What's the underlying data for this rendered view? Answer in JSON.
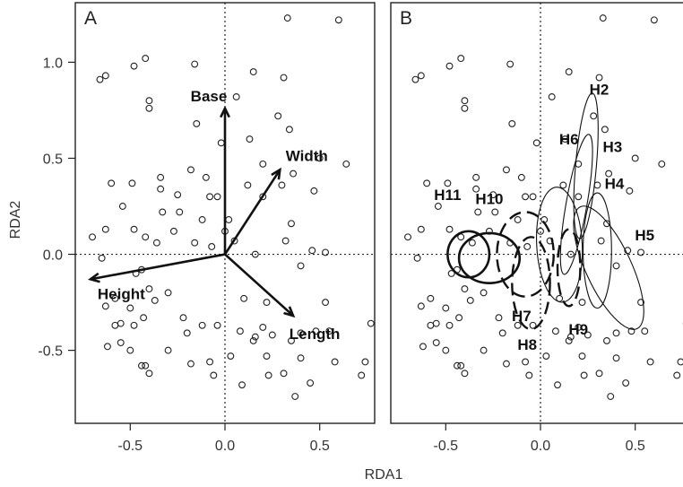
{
  "chart_data": [
    {
      "type": "scatter",
      "panel_label": "A",
      "xlabel": "RDA1",
      "ylabel": "RDA2",
      "xlim": [
        -0.79,
        0.79
      ],
      "ylim": [
        -0.88,
        1.31
      ],
      "xticks": [
        -0.5,
        0.0,
        0.5
      ],
      "xtick_labels": [
        "-0.5",
        "0.0",
        "0.5"
      ],
      "yticks": [
        -0.5,
        0.0,
        0.5,
        1.0
      ],
      "ytick_labels": [
        "-0.5",
        "0.0",
        "0.5",
        "1.0"
      ],
      "reference_lines": {
        "x": 0,
        "y": 0,
        "style": "dotted"
      },
      "marker": "open-circle",
      "points": [
        [
          0.33,
          1.23
        ],
        [
          0.6,
          1.22
        ],
        [
          -0.42,
          1.02
        ],
        [
          -0.48,
          0.98
        ],
        [
          -0.16,
          0.99
        ],
        [
          -0.63,
          0.93
        ],
        [
          -0.66,
          0.91
        ],
        [
          0.15,
          0.95
        ],
        [
          0.31,
          0.92
        ],
        [
          -0.4,
          0.8
        ],
        [
          0.06,
          0.82
        ],
        [
          -0.4,
          0.76
        ],
        [
          -0.15,
          0.68
        ],
        [
          0.28,
          0.72
        ],
        [
          0.34,
          0.65
        ],
        [
          0.13,
          0.6
        ],
        [
          -0.02,
          0.58
        ],
        [
          0.64,
          0.47
        ],
        [
          0.5,
          0.5
        ],
        [
          0.2,
          0.47
        ],
        [
          -0.18,
          0.44
        ],
        [
          0.36,
          0.42
        ],
        [
          -0.34,
          0.4
        ],
        [
          -0.1,
          0.4
        ],
        [
          -0.6,
          0.37
        ],
        [
          -0.49,
          0.37
        ],
        [
          0.12,
          0.36
        ],
        [
          0.3,
          0.36
        ],
        [
          -0.34,
          0.34
        ],
        [
          0.47,
          0.33
        ],
        [
          -0.08,
          0.3
        ],
        [
          -0.04,
          0.3
        ],
        [
          0.2,
          0.3
        ],
        [
          -0.54,
          0.25
        ],
        [
          -0.33,
          0.22
        ],
        [
          -0.24,
          0.22
        ],
        [
          0.02,
          0.18
        ],
        [
          0.35,
          0.16
        ],
        [
          -0.12,
          0.18
        ],
        [
          -0.63,
          0.13
        ],
        [
          -0.48,
          0.13
        ],
        [
          -0.27,
          0.12
        ],
        [
          0.0,
          0.12
        ],
        [
          0.05,
          0.07
        ],
        [
          -0.42,
          0.09
        ],
        [
          -0.36,
          0.06
        ],
        [
          0.32,
          0.07
        ],
        [
          0.46,
          0.02
        ],
        [
          0.53,
          0.01
        ],
        [
          -0.16,
          0.06
        ],
        [
          0.16,
          0.0
        ],
        [
          -0.07,
          0.04
        ],
        [
          -0.7,
          0.09
        ],
        [
          -0.65,
          -0.02
        ],
        [
          0.4,
          -0.06
        ],
        [
          -0.44,
          -0.08
        ],
        [
          -0.47,
          -0.1
        ],
        [
          -0.4,
          -0.18
        ],
        [
          -0.3,
          -0.2
        ],
        [
          -0.58,
          -0.23
        ],
        [
          -0.63,
          -0.27
        ],
        [
          -0.5,
          -0.28
        ],
        [
          -0.37,
          -0.24
        ],
        [
          0.1,
          -0.23
        ],
        [
          0.22,
          -0.25
        ],
        [
          0.53,
          -0.25
        ],
        [
          -0.58,
          -0.37
        ],
        [
          -0.55,
          -0.36
        ],
        [
          -0.48,
          -0.37
        ],
        [
          -0.43,
          -0.33
        ],
        [
          -0.22,
          -0.33
        ],
        [
          -0.12,
          -0.37
        ],
        [
          -0.04,
          -0.37
        ],
        [
          -0.2,
          -0.41
        ],
        [
          -0.55,
          -0.46
        ],
        [
          -0.5,
          -0.5
        ],
        [
          -0.62,
          -0.48
        ],
        [
          -0.3,
          -0.5
        ],
        [
          0.08,
          -0.4
        ],
        [
          0.16,
          -0.43
        ],
        [
          0.2,
          -0.38
        ],
        [
          0.25,
          -0.42
        ],
        [
          0.35,
          -0.45
        ],
        [
          0.4,
          -0.41
        ],
        [
          0.48,
          -0.4
        ],
        [
          0.22,
          -0.53
        ],
        [
          0.03,
          -0.53
        ],
        [
          -0.08,
          -0.56
        ],
        [
          0.4,
          -0.54
        ],
        [
          0.58,
          -0.56
        ],
        [
          0.74,
          -0.56
        ],
        [
          -0.44,
          -0.58
        ],
        [
          -0.42,
          -0.58
        ],
        [
          -0.4,
          -0.62
        ],
        [
          -0.18,
          -0.57
        ],
        [
          -0.06,
          -0.63
        ],
        [
          0.23,
          -0.63
        ],
        [
          0.31,
          -0.62
        ],
        [
          0.45,
          -0.67
        ],
        [
          0.72,
          -0.63
        ],
        [
          0.09,
          -0.68
        ],
        [
          0.37,
          -0.74
        ],
        [
          0.15,
          -0.45
        ],
        [
          -0.25,
          0.31
        ],
        [
          0.55,
          -0.4
        ],
        [
          0.77,
          -0.36
        ]
      ],
      "vectors": [
        {
          "name": "Base",
          "x": 0.0,
          "y": 0.76
        },
        {
          "name": "Width",
          "x": 0.29,
          "y": 0.44
        },
        {
          "name": "Height",
          "x": -0.71,
          "y": -0.13
        },
        {
          "name": "Length",
          "x": 0.36,
          "y": -0.32
        }
      ],
      "grid": false
    },
    {
      "type": "scatter",
      "panel_label": "B",
      "xlim": [
        -0.79,
        0.79
      ],
      "ylim": [
        -0.88,
        1.31
      ],
      "xticks": [
        -0.5,
        0.0,
        0.5
      ],
      "xtick_labels": [
        "-0.5",
        "0.0",
        "0.5"
      ],
      "reference_lines": {
        "x": 0,
        "y": 0,
        "style": "dotted"
      },
      "marker": "open-circle",
      "ellipses": [
        {
          "name": "H2",
          "cx": 0.24,
          "cy": 0.46,
          "rx": 0.055,
          "ry": 0.38,
          "rot": 5,
          "style": "thin"
        },
        {
          "name": "H3",
          "cx": 0.19,
          "cy": 0.26,
          "rx": 0.055,
          "ry": 0.37,
          "rot": 10,
          "style": "thin"
        },
        {
          "name": "H6",
          "cx": 0.1,
          "cy": 0.05,
          "rx": 0.12,
          "ry": 0.3,
          "rot": -3,
          "style": "thin"
        },
        {
          "name": "H4",
          "cx": 0.3,
          "cy": 0.02,
          "rx": 0.075,
          "ry": 0.3,
          "rot": 0,
          "style": "thin"
        },
        {
          "name": "H5",
          "cx": 0.36,
          "cy": -0.07,
          "rx": 0.12,
          "ry": 0.35,
          "rot": -25,
          "style": "thin"
        },
        {
          "name": "H11",
          "cx": -0.38,
          "cy": 0.0,
          "rx": 0.11,
          "ry": 0.12,
          "rot": 0,
          "style": "thick"
        },
        {
          "name": "H10",
          "cx": -0.27,
          "cy": -0.02,
          "rx": 0.16,
          "ry": 0.13,
          "rot": 0,
          "style": "thick"
        },
        {
          "name": "H7",
          "cx": -0.08,
          "cy": 0.0,
          "rx": 0.15,
          "ry": 0.22,
          "rot": 0,
          "style": "dashed"
        },
        {
          "name": "H8",
          "cx": -0.05,
          "cy": -0.15,
          "rx": 0.1,
          "ry": 0.24,
          "rot": 0,
          "style": "dashed"
        },
        {
          "name": "H9",
          "cx": 0.15,
          "cy": -0.07,
          "rx": 0.06,
          "ry": 0.2,
          "rot": 0,
          "style": "dashed"
        }
      ],
      "ellipse_labels": [
        {
          "text": "H2",
          "x": 0.31,
          "y": 0.86
        },
        {
          "text": "H3",
          "x": 0.38,
          "y": 0.56
        },
        {
          "text": "H4",
          "x": 0.39,
          "y": 0.37
        },
        {
          "text": "H5",
          "x": 0.55,
          "y": 0.1
        },
        {
          "text": "H6",
          "x": 0.15,
          "y": 0.6
        },
        {
          "text": "H10",
          "x": -0.27,
          "y": 0.29
        },
        {
          "text": "H11",
          "x": -0.49,
          "y": 0.31
        },
        {
          "text": "H7",
          "x": -0.1,
          "y": -0.32
        },
        {
          "text": "H8",
          "x": -0.07,
          "y": -0.47
        },
        {
          "text": "H9",
          "x": 0.2,
          "y": -0.39
        }
      ],
      "grid": false
    }
  ]
}
